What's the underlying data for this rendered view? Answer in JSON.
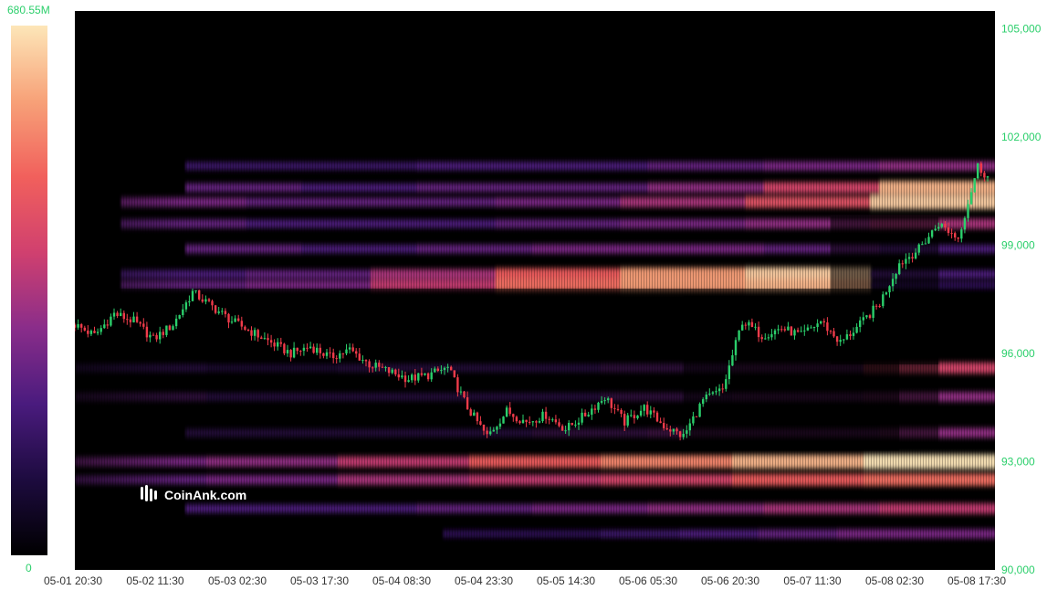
{
  "chart_data": {
    "type": "heatmap",
    "legend": {
      "max_label": "680.55M",
      "min_label": "0",
      "color_stops": [
        "#000000",
        "#1d0b3f",
        "#4a1b7e",
        "#8a2d8a",
        "#d0406f",
        "#f1605c",
        "#f7a178",
        "#fde6b8"
      ]
    },
    "x_tick_labels": [
      "05-01 20:30",
      "05-02 11:30",
      "05-03 02:30",
      "05-03 17:30",
      "05-04 08:30",
      "05-04 23:30",
      "05-05 14:30",
      "05-06 05:30",
      "05-06 20:30",
      "05-07 11:30",
      "05-08 02:30",
      "05-08 17:30"
    ],
    "y_axis": {
      "position": "right",
      "tick_labels": [
        "105,000",
        "102,000",
        "99,000",
        "96,000",
        "93,000",
        "90,000"
      ],
      "tick_values": [
        105000,
        102000,
        99000,
        96000,
        93000,
        90000
      ],
      "range": [
        90000,
        105500
      ]
    },
    "price_series": {
      "name": "price",
      "points": [
        [
          0,
          96800
        ],
        [
          6,
          96500
        ],
        [
          12,
          97100
        ],
        [
          18,
          96900
        ],
        [
          24,
          96400
        ],
        [
          30,
          96800
        ],
        [
          36,
          97700
        ],
        [
          42,
          97300
        ],
        [
          48,
          96900
        ],
        [
          54,
          96600
        ],
        [
          60,
          96300
        ],
        [
          66,
          96000
        ],
        [
          72,
          96200
        ],
        [
          78,
          95900
        ],
        [
          84,
          96100
        ],
        [
          90,
          95700
        ],
        [
          96,
          95500
        ],
        [
          102,
          95300
        ],
        [
          108,
          95400
        ],
        [
          114,
          95600
        ],
        [
          120,
          94500
        ],
        [
          126,
          93700
        ],
        [
          132,
          94400
        ],
        [
          138,
          94100
        ],
        [
          144,
          94300
        ],
        [
          150,
          93900
        ],
        [
          156,
          94300
        ],
        [
          162,
          94800
        ],
        [
          168,
          94100
        ],
        [
          174,
          94500
        ],
        [
          180,
          94000
        ],
        [
          186,
          93700
        ],
        [
          192,
          94700
        ],
        [
          198,
          95000
        ],
        [
          204,
          96900
        ],
        [
          210,
          96500
        ],
        [
          216,
          96700
        ],
        [
          222,
          96500
        ],
        [
          228,
          96900
        ],
        [
          234,
          96300
        ],
        [
          240,
          96800
        ],
        [
          246,
          97400
        ],
        [
          252,
          98500
        ],
        [
          258,
          98900
        ],
        [
          264,
          99600
        ],
        [
          270,
          99200
        ],
        [
          276,
          101200
        ],
        [
          279,
          100900
        ]
      ],
      "up_color": "#2bcf6b",
      "down_color": "#ef3b4a"
    },
    "liquidation_bands": [
      {
        "y": 101200,
        "x_from": 0.12,
        "intensity": [
          0.25,
          0.25,
          0.3,
          0.3,
          0.35,
          0.4,
          0.45
        ]
      },
      {
        "y": 100600,
        "x_from": 0.12,
        "intensity": [
          0.35,
          0.3,
          0.35,
          0.35,
          0.45,
          0.6,
          0.9
        ]
      },
      {
        "y": 100200,
        "x_from": 0.05,
        "intensity": [
          0.4,
          0.35,
          0.35,
          0.4,
          0.5,
          0.65,
          0.95
        ]
      },
      {
        "y": 99600,
        "x_from": 0.05,
        "intensity": [
          0.35,
          0.3,
          0.3,
          0.35,
          0.4,
          0.45,
          0.5
        ]
      },
      {
        "y": 98900,
        "x_from": 0.12,
        "intensity": [
          0.35,
          0.3,
          0.35,
          0.4,
          0.4,
          0.35,
          0.3
        ]
      },
      {
        "y": 98200,
        "x_from": 0.05,
        "intensity": [
          0.3,
          0.35,
          0.5,
          0.7,
          0.85,
          0.95,
          0.3
        ]
      },
      {
        "y": 97900,
        "x_from": 0.05,
        "intensity": [
          0.35,
          0.4,
          0.55,
          0.75,
          0.85,
          0.9,
          0.2
        ]
      },
      {
        "y": 95600,
        "x_from": 0.0,
        "intensity": [
          0.3,
          0.25,
          0.3,
          0.3,
          0.35,
          0.4,
          0.6
        ]
      },
      {
        "y": 94800,
        "x_from": 0.0,
        "intensity": [
          0.35,
          0.3,
          0.3,
          0.3,
          0.35,
          0.4,
          0.45
        ]
      },
      {
        "y": 93800,
        "x_from": 0.12,
        "intensity": [
          0.3,
          0.3,
          0.3,
          0.35,
          0.4,
          0.4,
          0.45
        ]
      },
      {
        "y": 93000,
        "x_from": 0.0,
        "intensity": [
          0.4,
          0.45,
          0.55,
          0.7,
          0.8,
          0.9,
          1.0
        ]
      },
      {
        "y": 92500,
        "x_from": 0.0,
        "intensity": [
          0.35,
          0.4,
          0.5,
          0.55,
          0.6,
          0.7,
          0.75
        ]
      },
      {
        "y": 91700,
        "x_from": 0.12,
        "intensity": [
          0.3,
          0.3,
          0.35,
          0.4,
          0.45,
          0.5,
          0.55
        ]
      },
      {
        "y": 91000,
        "x_from": 0.4,
        "intensity": [
          0.2,
          0.2,
          0.25,
          0.3,
          0.35,
          0.4,
          0.4
        ]
      }
    ],
    "cleared_zones": [
      {
        "from_index": 0,
        "to_index": 131,
        "price_low": 93300,
        "price_high": 97800
      },
      {
        "from_index": 131,
        "to_index": 252,
        "price_low": 93300,
        "price_high": 97800
      },
      {
        "from_index": 186,
        "to_index": 264,
        "price_low": 93400,
        "price_high": 97600
      },
      {
        "from_index": 231,
        "to_index": 264,
        "price_low": 95700,
        "price_high": 99800
      }
    ],
    "watermark": "CoinAnk.com",
    "colors": {
      "axis_text": "#2bcf6b",
      "x_axis_text": "#333333",
      "background": "#000000"
    }
  }
}
